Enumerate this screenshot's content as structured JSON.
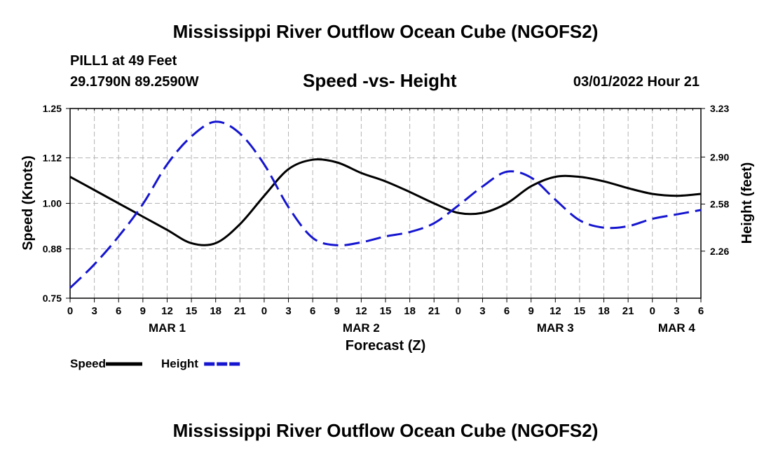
{
  "header": {
    "title": "Mississippi River Outflow Ocean Cube (NGOFS2)",
    "station": "PILL1 at 49 Feet",
    "coordinates": "29.1790N  89.2590W",
    "subtitle": "Speed -vs- Height",
    "datetime": "03/01/2022 Hour 21"
  },
  "footer": {
    "title": "Mississippi River Outflow Ocean Cube (NGOFS2)"
  },
  "chart_data": {
    "type": "line",
    "title": "Speed -vs- Height",
    "xlabel": "Forecast (Z)",
    "ylabel": "Speed (Knots)",
    "y2label": "Height (feet)",
    "x_unit": "hours from MAR 1 00Z",
    "xlim": [
      0,
      78
    ],
    "ylim": [
      0.75,
      1.25
    ],
    "y2lim": [
      1.94,
      3.23
    ],
    "yticks": [
      0.75,
      0.88,
      1.0,
      1.12,
      1.25
    ],
    "ytick_labels": [
      "0.75",
      "0.88",
      "1.00",
      "1.12",
      "1.25"
    ],
    "y2ticks": [
      2.26,
      2.58,
      2.9,
      3.23
    ],
    "y2tick_labels": [
      "2.26",
      "2.58",
      "2.90",
      "3.23"
    ],
    "xtick_labels": [
      "0",
      "3",
      "6",
      "9",
      "12",
      "15",
      "18",
      "21",
      "0",
      "3",
      "6",
      "9",
      "12",
      "15",
      "18",
      "21",
      "0",
      "3",
      "6",
      "9",
      "12",
      "15",
      "18",
      "21",
      "0",
      "3",
      "6"
    ],
    "date_labels": [
      {
        "hour": 12,
        "label": "MAR 1"
      },
      {
        "hour": 36,
        "label": "MAR 2"
      },
      {
        "hour": 60,
        "label": "MAR 3"
      },
      {
        "hour": 75,
        "label": "MAR 4"
      }
    ],
    "grid": true,
    "series": [
      {
        "name": "Speed",
        "axis": "left",
        "color": "#000000",
        "dash": "solid",
        "x": [
          0,
          3,
          6,
          9,
          12,
          15,
          18,
          21,
          24,
          27,
          30,
          33,
          36,
          39,
          42,
          45,
          48,
          51,
          54,
          57,
          60,
          63,
          66,
          69,
          72,
          75,
          78
        ],
        "values": [
          1.07,
          1.035,
          1.0,
          0.965,
          0.93,
          0.895,
          0.895,
          0.945,
          1.02,
          1.09,
          1.115,
          1.108,
          1.08,
          1.058,
          1.03,
          1.0,
          0.975,
          0.975,
          1.0,
          1.045,
          1.07,
          1.07,
          1.058,
          1.04,
          1.025,
          1.02,
          1.025
        ]
      },
      {
        "name": "Height",
        "axis": "right",
        "color": "#1515d0",
        "dash": "dashed",
        "x": [
          0,
          3,
          6,
          9,
          12,
          15,
          18,
          21,
          24,
          27,
          30,
          33,
          36,
          39,
          42,
          45,
          48,
          51,
          54,
          57,
          60,
          63,
          66,
          69,
          72,
          75,
          78
        ],
        "values": [
          2.01,
          2.17,
          2.36,
          2.58,
          2.85,
          3.04,
          3.14,
          3.06,
          2.85,
          2.56,
          2.35,
          2.3,
          2.32,
          2.36,
          2.39,
          2.45,
          2.57,
          2.7,
          2.8,
          2.76,
          2.61,
          2.47,
          2.42,
          2.43,
          2.48,
          2.51,
          2.54
        ]
      }
    ],
    "legend": [
      {
        "label": "Speed",
        "color": "#000000",
        "dash": "solid"
      },
      {
        "label": "Height",
        "color": "#1515d0",
        "dash": "dashed"
      }
    ],
    "legend_position": "bottom-left"
  }
}
